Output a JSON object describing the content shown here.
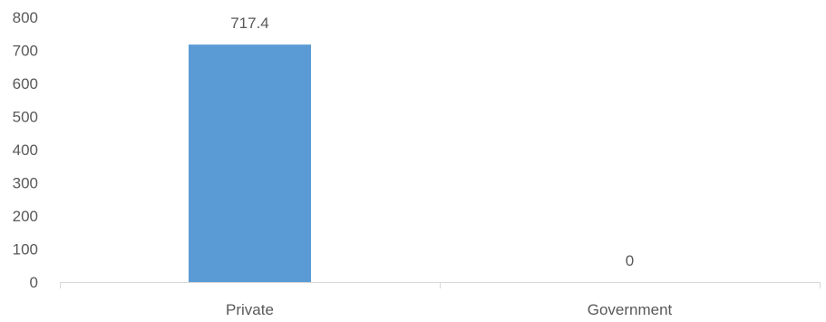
{
  "chart_data": {
    "type": "bar",
    "categories": [
      "Private",
      "Government"
    ],
    "values": [
      717.4,
      0
    ],
    "data_labels": [
      "717.4",
      "0"
    ],
    "ylim": [
      0,
      800
    ],
    "yticks": [
      0,
      100,
      200,
      300,
      400,
      500,
      600,
      700,
      800
    ],
    "title": "",
    "xlabel": "",
    "ylabel": "",
    "grid": false,
    "bar_color": "#5B9BD5",
    "axis_color": "#D9D9D9",
    "text_color": "#595959"
  }
}
